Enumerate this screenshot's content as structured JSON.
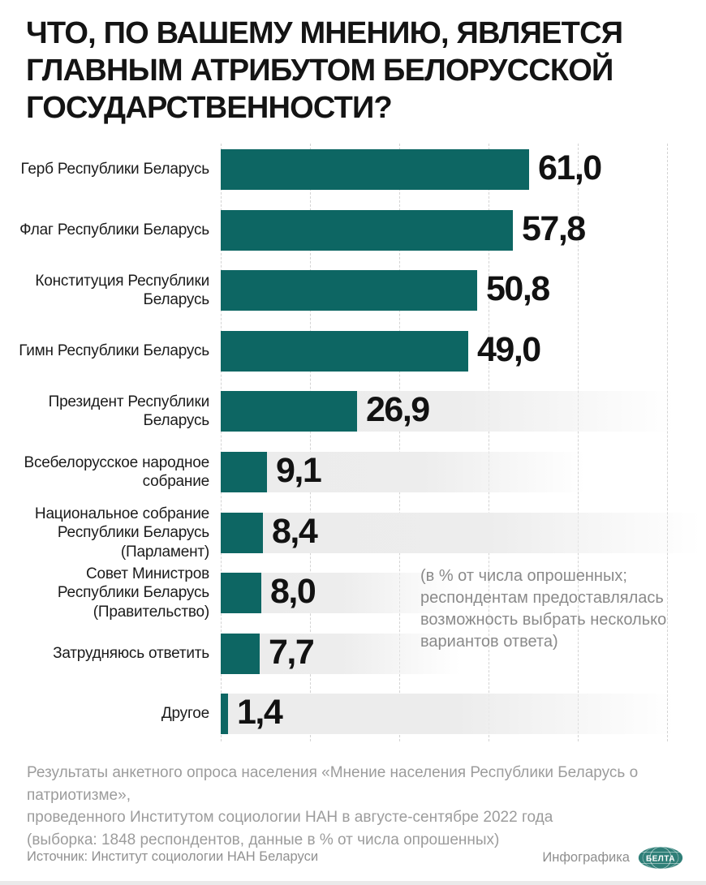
{
  "title": "ЧТО, ПО ВАШЕМУ МНЕНИЮ, ЯВЛЯЕТСЯ\nГЛАВНЫМ АТРИБУТОМ БЕЛОРУССКОЙ\nГОСУДАРСТВЕННОСТИ?",
  "chart_data": {
    "type": "bar",
    "orientation": "horizontal",
    "title": "Что, по вашему мнению, является главным атрибутом белорусской государственности?",
    "categories": [
      "Герб Республики Беларусь",
      "Флаг Республики Беларусь",
      "Конституция Республики\nБеларусь",
      "Гимн Республики Беларусь",
      "Президент Республики\nБеларусь",
      "Всебелорусское народное\nсобрание",
      "Национальное собрание\nРеспублики Беларусь\n(Парламент)",
      "Совет Министров\nРеспублики Беларусь\n(Правительство)",
      "Затрудняюсь ответить",
      "Другое"
    ],
    "values": [
      61.0,
      57.8,
      50.8,
      49.0,
      26.9,
      9.1,
      8.4,
      8.0,
      7.7,
      1.4
    ],
    "value_labels": [
      "61,0",
      "57,8",
      "50,8",
      "49,0",
      "26,9",
      "9,1",
      "8,4",
      "8,0",
      "7,7",
      "1,4"
    ],
    "unit": "% от числа опрошенных",
    "xlim": [
      0,
      96
    ],
    "grid": "vertical dashed, decorative",
    "legend": "none",
    "bar_color": "#0d6663",
    "track_color": "#ececec",
    "value_color": "#121212"
  },
  "annotation": "(в % от числа опрошенных;\nреспондентам предоставлялась\nвозможность выбрать несколько\nвариантов ответа)",
  "footer": {
    "lines": [
      "Результаты анкетного опроса населения «Мнение населения Республики Беларусь о патриотизме»,",
      "проведенного Институтом социологии НАН в августе-сентябре 2022 года",
      "(выборка: 1848 респондентов, данные в % от числа опрошенных)"
    ]
  },
  "source_bar": {
    "source": "Источник: Институт социологии НАН Беларуси",
    "credit": "Инфографика",
    "logo_text": "БЕЛТА",
    "logo_color": "#2f7f78"
  }
}
